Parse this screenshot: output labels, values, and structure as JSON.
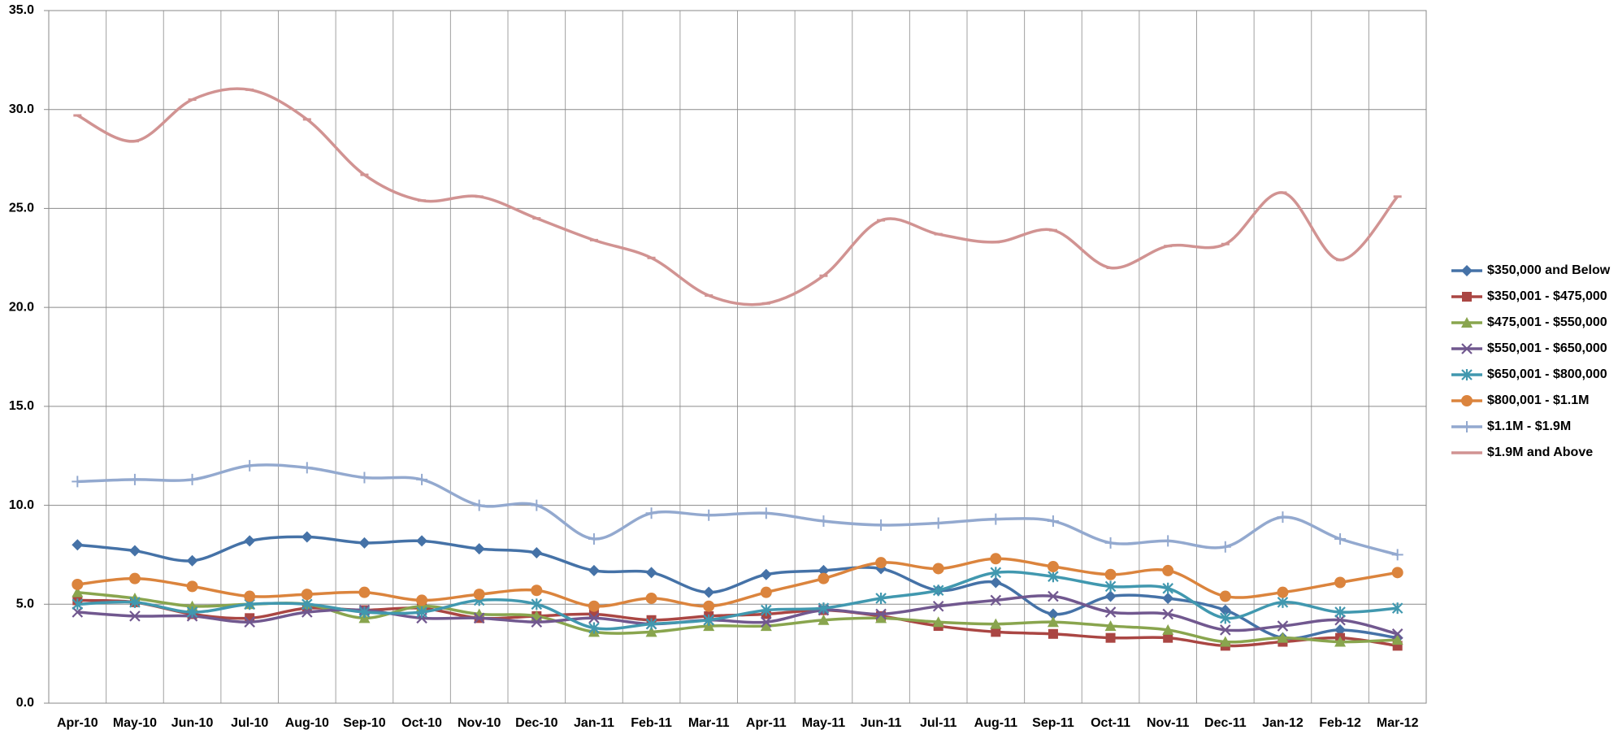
{
  "chart_data": {
    "type": "line",
    "categories": [
      "Apr-10",
      "May-10",
      "Jun-10",
      "Jul-10",
      "Aug-10",
      "Sep-10",
      "Oct-10",
      "Nov-10",
      "Dec-10",
      "Jan-11",
      "Feb-11",
      "Mar-11",
      "Apr-11",
      "May-11",
      "Jun-11",
      "Jul-11",
      "Aug-11",
      "Sep-11",
      "Oct-11",
      "Nov-11",
      "Dec-11",
      "Jan-12",
      "Feb-12",
      "Mar-12"
    ],
    "series": [
      {
        "name": "$350,000 and Below",
        "color": "#4572a7",
        "marker": "diamond",
        "values": [
          8.0,
          7.7,
          7.2,
          8.2,
          8.4,
          8.1,
          8.2,
          7.8,
          7.6,
          6.7,
          6.6,
          5.6,
          6.5,
          6.7,
          6.8,
          5.7,
          6.1,
          4.5,
          5.4,
          5.3,
          4.7,
          3.3,
          3.7,
          3.3
        ]
      },
      {
        "name": "$350,001 - $475,000",
        "color": "#aa4643",
        "marker": "square",
        "values": [
          5.2,
          5.1,
          4.5,
          4.3,
          4.8,
          4.7,
          4.8,
          4.3,
          4.4,
          4.5,
          4.2,
          4.4,
          4.5,
          4.7,
          4.4,
          3.9,
          3.6,
          3.5,
          3.3,
          3.3,
          2.9,
          3.1,
          3.3,
          2.9
        ]
      },
      {
        "name": "$475,001 - $550,000",
        "color": "#89a54e",
        "marker": "triangle",
        "values": [
          5.6,
          5.3,
          4.9,
          5.0,
          5.0,
          4.3,
          4.9,
          4.5,
          4.4,
          3.6,
          3.6,
          3.9,
          3.9,
          4.2,
          4.3,
          4.1,
          4.0,
          4.1,
          3.9,
          3.7,
          3.1,
          3.3,
          3.1,
          3.2
        ]
      },
      {
        "name": "$550,001 - $650,000",
        "color": "#71588f",
        "marker": "x",
        "values": [
          4.6,
          4.4,
          4.4,
          4.1,
          4.6,
          4.7,
          4.3,
          4.3,
          4.1,
          4.3,
          4.0,
          4.2,
          4.1,
          4.7,
          4.5,
          4.9,
          5.2,
          5.4,
          4.6,
          4.5,
          3.7,
          3.9,
          4.2,
          3.5
        ]
      },
      {
        "name": "$650,001 - $800,000",
        "color": "#4198af",
        "marker": "star",
        "values": [
          5.0,
          5.1,
          4.6,
          5.0,
          5.0,
          4.6,
          4.6,
          5.2,
          5.0,
          3.8,
          4.0,
          4.2,
          4.7,
          4.8,
          5.3,
          5.7,
          6.6,
          6.4,
          5.9,
          5.8,
          4.3,
          5.1,
          4.6,
          4.8
        ]
      },
      {
        "name": "$800,001 - $1.1M",
        "color": "#db843d",
        "marker": "circle",
        "values": [
          6.0,
          6.3,
          5.9,
          5.4,
          5.5,
          5.6,
          5.2,
          5.5,
          5.7,
          4.9,
          5.3,
          4.9,
          5.6,
          6.3,
          7.1,
          6.8,
          7.3,
          6.9,
          6.5,
          6.7,
          5.4,
          5.6,
          6.1,
          6.6
        ]
      },
      {
        "name": "$1.1M - $1.9M",
        "color": "#93a9cf",
        "marker": "plus",
        "values": [
          11.2,
          11.3,
          11.3,
          12.0,
          11.9,
          11.4,
          11.3,
          10.0,
          10.0,
          8.3,
          9.6,
          9.5,
          9.6,
          9.2,
          9.0,
          9.1,
          9.3,
          9.2,
          8.1,
          8.2,
          7.9,
          9.4,
          8.3,
          7.5
        ]
      },
      {
        "name": "$1.9M and Above",
        "color": "#d19392",
        "marker": "dash",
        "values": [
          29.7,
          28.4,
          30.5,
          31.0,
          29.5,
          26.7,
          25.4,
          25.6,
          24.5,
          23.4,
          22.5,
          20.6,
          20.2,
          21.6,
          24.4,
          23.7,
          23.3,
          23.9,
          22.0,
          23.1,
          23.2,
          25.8,
          22.4,
          25.6
        ]
      }
    ],
    "ylim": [
      0,
      35
    ],
    "yticks": [
      {
        "value": 0,
        "label": "0.0"
      },
      {
        "value": 5,
        "label": "5.0"
      },
      {
        "value": 10,
        "label": "10.0"
      },
      {
        "value": 15,
        "label": "15.0"
      },
      {
        "value": 20,
        "label": "20.0"
      },
      {
        "value": 25,
        "label": "25.0"
      },
      {
        "value": 30,
        "label": "30.0"
      },
      {
        "value": 35,
        "label": "35.0"
      }
    ],
    "grid": true,
    "smooth": true,
    "legend": "right"
  }
}
